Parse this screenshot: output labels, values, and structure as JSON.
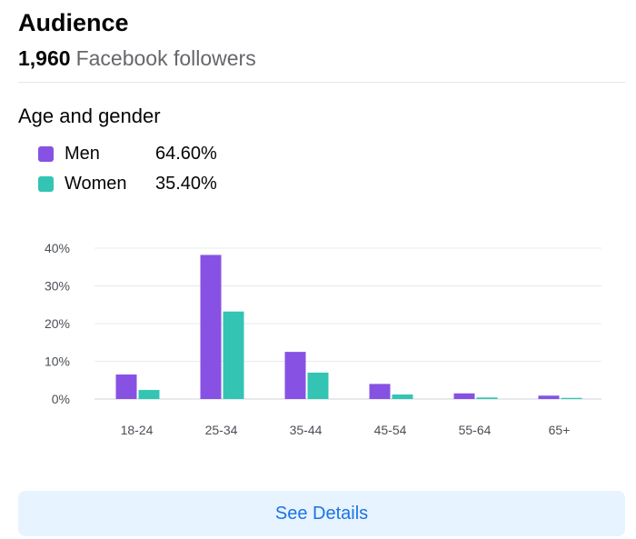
{
  "header": {
    "title": "Audience",
    "follower_count": "1,960",
    "follower_label": "Facebook followers"
  },
  "section": {
    "title": "Age and gender"
  },
  "legend": [
    {
      "name": "Men",
      "value": "64.60%",
      "color": "#8752e3"
    },
    {
      "name": "Women",
      "value": "35.40%",
      "color": "#33c4b3"
    }
  ],
  "chart_data": {
    "type": "bar",
    "categories": [
      "18-24",
      "25-34",
      "35-44",
      "45-54",
      "55-64",
      "65+"
    ],
    "series": [
      {
        "name": "Men",
        "values": [
          6.5,
          38.2,
          12.5,
          4.0,
          1.5,
          0.9
        ],
        "color": "#8752e3"
      },
      {
        "name": "Women",
        "values": [
          2.4,
          23.2,
          7.0,
          1.2,
          0.4,
          0.3
        ],
        "color": "#33c4b3"
      }
    ],
    "yticks": [
      "0%",
      "10%",
      "20%",
      "30%",
      "40%"
    ],
    "ylim": [
      0,
      40
    ],
    "grid": true,
    "legend_position": "top-left"
  },
  "footer": {
    "button_label": "See Details"
  }
}
